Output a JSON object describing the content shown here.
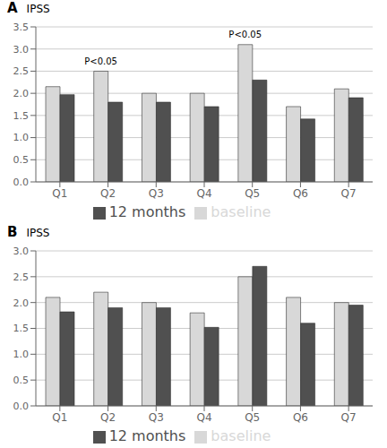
{
  "chart_data": [
    {
      "type": "bar",
      "title": "A",
      "ylabel": "IPSS",
      "categories": [
        "Q1",
        "Q2",
        "Q3",
        "Q4",
        "Q5",
        "Q6",
        "Q7"
      ],
      "series": [
        {
          "name": "baseline",
          "color": "#d8d8d8",
          "values": [
            2.15,
            2.5,
            2.0,
            2.0,
            3.1,
            1.7,
            2.1
          ]
        },
        {
          "name": "12 months",
          "color": "#505050",
          "values": [
            1.97,
            1.8,
            1.8,
            1.7,
            2.3,
            1.42,
            1.9
          ]
        }
      ],
      "ylim": [
        0,
        3.5
      ],
      "yticks": [
        {
          "value": 0,
          "label": "0.0"
        },
        {
          "value": 0.5,
          "label": "0.5"
        },
        {
          "value": 1.0,
          "label": "1.0"
        },
        {
          "value": 1.5,
          "label": "1.5"
        },
        {
          "value": 2.0,
          "label": "2.0"
        },
        {
          "value": 2.5,
          "label": "2.5"
        },
        {
          "value": 3.0,
          "label": "3.0"
        },
        {
          "value": 3.5,
          "label": "3.5"
        }
      ],
      "annotations": [
        {
          "category": "Q2",
          "series": "baseline",
          "text": "P<0.05",
          "y": 2.6
        },
        {
          "category": "Q5",
          "series": "baseline",
          "text": "P<0.05",
          "y": 3.22
        }
      ],
      "grid": true,
      "legend": "bottom"
    },
    {
      "type": "bar",
      "title": "B",
      "ylabel": "IPSS",
      "categories": [
        "Q1",
        "Q2",
        "Q3",
        "Q4",
        "Q5",
        "Q6",
        "Q7"
      ],
      "series": [
        {
          "name": "baseline",
          "color": "#d8d8d8",
          "values": [
            2.1,
            2.2,
            2.0,
            1.8,
            2.5,
            2.1,
            2.0
          ]
        },
        {
          "name": "12 months",
          "color": "#505050",
          "values": [
            1.82,
            1.9,
            1.9,
            1.52,
            2.7,
            1.6,
            1.95
          ]
        }
      ],
      "ylim": [
        0,
        3.0
      ],
      "yticks": [
        {
          "value": 0,
          "label": "0.0"
        },
        {
          "value": 0.5,
          "label": "0.5"
        },
        {
          "value": 1.0,
          "label": "1.0"
        },
        {
          "value": 1.5,
          "label": "1.5"
        },
        {
          "value": 2.0,
          "label": "2.0"
        },
        {
          "value": 2.5,
          "label": "2.5"
        },
        {
          "value": 3.0,
          "label": "3.0"
        }
      ],
      "annotations": [],
      "grid": true,
      "legend": "bottom"
    }
  ]
}
